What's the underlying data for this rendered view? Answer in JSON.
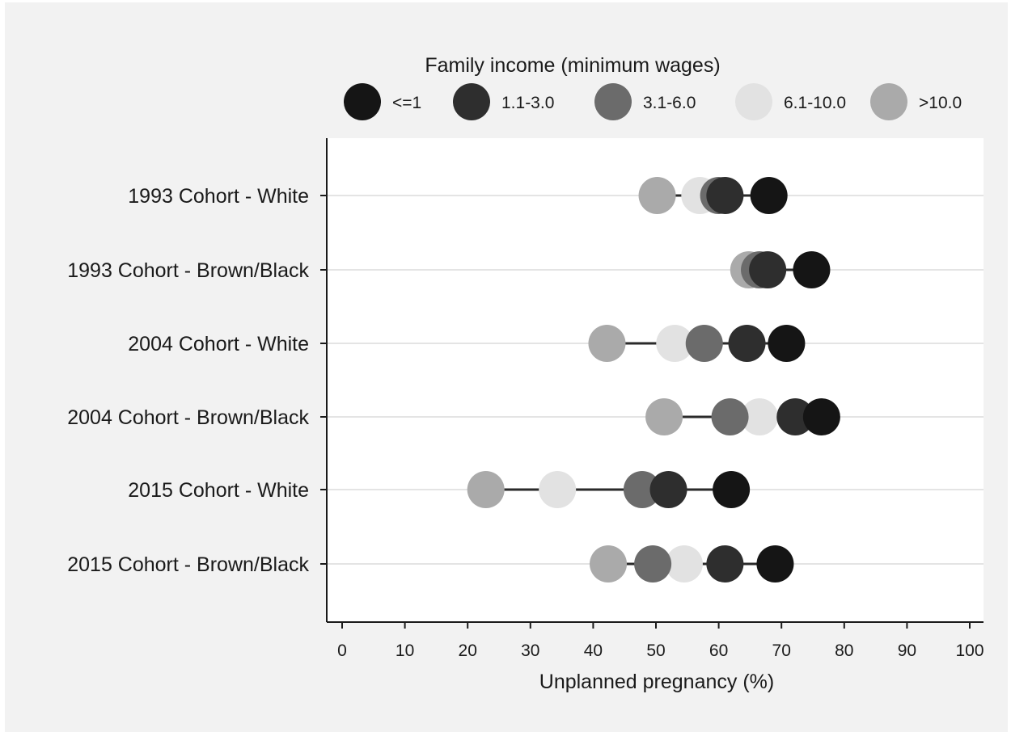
{
  "chart_data": {
    "type": "dot",
    "title": "",
    "legend_title": "Family income (minimum wages)",
    "legend_position": "top",
    "xlabel": "Unplanned pregnancy (%)",
    "ylabel": "",
    "xlim": [
      0,
      100
    ],
    "xticks": [
      "0",
      "10",
      "20",
      "30",
      "40",
      "50",
      "60",
      "70",
      "80",
      "90",
      "100"
    ],
    "grid": true,
    "categories": [
      "1993 Cohort  - White",
      "1993 Cohort  - Brown/Black",
      "2004 Cohort  - White",
      "2004 Cohort - Brown/Black",
      "2015 Cohort  - White",
      "2015 Cohort  - Brown/Black"
    ],
    "series": [
      {
        "name": "<=1",
        "color": "#151515",
        "values": [
          68.0,
          74.8,
          70.8,
          76.4,
          62.0,
          69.0
        ]
      },
      {
        "name": "1.1-3.0",
        "color": "#2e2e2e",
        "values": [
          61.0,
          67.8,
          64.5,
          72.2,
          52.0,
          61.0
        ]
      },
      {
        "name": "3.1-6.0",
        "color": "#6b6b6b",
        "values": [
          60.0,
          66.5,
          57.7,
          61.8,
          47.8,
          49.5
        ]
      },
      {
        "name": "6.1-10.0",
        "color": "#e2e2e2",
        "values": [
          57.0,
          67.5,
          53.0,
          66.5,
          34.3,
          54.5
        ]
      },
      {
        "name": ">10.0",
        "color": "#aaaaaa",
        "values": [
          50.2,
          64.8,
          42.2,
          51.3,
          22.9,
          42.4
        ]
      }
    ]
  }
}
